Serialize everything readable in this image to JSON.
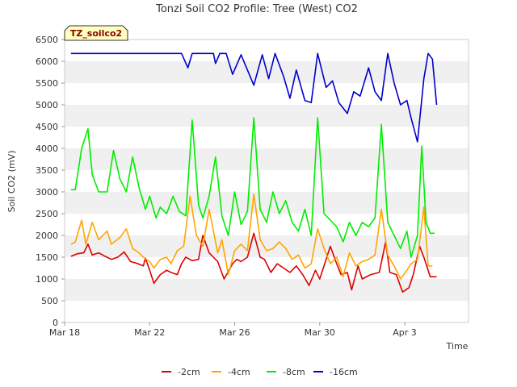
{
  "chart_data": {
    "type": "line",
    "title": "Tonzi Soil CO2 Profile: Tree (West) CO2",
    "xlabel": "Time",
    "ylabel": "Soil CO2 (mV)",
    "badge": "TZ_soilco2",
    "ylim": [
      0,
      6500
    ],
    "yticks": [
      0,
      500,
      1000,
      1500,
      2000,
      2500,
      3000,
      3500,
      4000,
      4500,
      5000,
      5500,
      6000,
      6500
    ],
    "xlim": [
      0,
      19
    ],
    "xticks": [
      {
        "label": "Mar 18",
        "value": 0
      },
      {
        "label": "Mar 22",
        "value": 4
      },
      {
        "label": "Mar 26",
        "value": 8
      },
      {
        "label": "Mar 30",
        "value": 12
      },
      {
        "label": "Apr 3",
        "value": 16
      }
    ],
    "series": [
      {
        "name": "-2cm",
        "color": "#dd0000",
        "x": [
          0.3,
          0.6,
          0.9,
          1.1,
          1.3,
          1.6,
          1.9,
          2.2,
          2.5,
          2.8,
          3.1,
          3.4,
          3.7,
          3.8,
          4.0,
          4.2,
          4.5,
          4.8,
          5.0,
          5.3,
          5.5,
          5.7,
          6.0,
          6.3,
          6.5,
          6.8,
          7.0,
          7.2,
          7.5,
          7.9,
          8.1,
          8.3,
          8.6,
          8.9,
          9.2,
          9.4,
          9.7,
          10.0,
          10.3,
          10.6,
          10.9,
          11.2,
          11.5,
          11.8,
          12.0,
          12.2,
          12.5,
          12.8,
          13.0,
          13.3,
          13.5,
          13.8,
          14.0,
          14.4,
          14.8,
          15.1,
          15.3,
          15.6,
          15.9,
          16.2,
          16.4,
          16.7,
          16.9,
          17.2,
          17.5
        ],
        "values": [
          1520,
          1580,
          1600,
          1800,
          1550,
          1600,
          1520,
          1450,
          1500,
          1620,
          1400,
          1360,
          1300,
          1480,
          1200,
          900,
          1100,
          1200,
          1150,
          1100,
          1350,
          1500,
          1420,
          1450,
          2000,
          1600,
          1500,
          1400,
          1000,
          1350,
          1450,
          1400,
          1500,
          2050,
          1500,
          1450,
          1150,
          1350,
          1250,
          1150,
          1300,
          1100,
          850,
          1200,
          1000,
          1300,
          1750,
          1350,
          1100,
          1150,
          750,
          1300,
          1000,
          1100,
          1150,
          1850,
          1150,
          1100,
          700,
          800,
          1100,
          1750,
          1500,
          1050,
          1050
        ]
      },
      {
        "name": "-4cm",
        "color": "#ffa500",
        "x": [
          0.3,
          0.5,
          0.8,
          1.0,
          1.3,
          1.6,
          2.0,
          2.2,
          2.6,
          2.9,
          3.2,
          3.5,
          3.7,
          4.0,
          4.2,
          4.5,
          4.8,
          5.0,
          5.3,
          5.6,
          5.9,
          6.2,
          6.5,
          6.8,
          7.2,
          7.4,
          7.7,
          8.0,
          8.3,
          8.6,
          8.9,
          9.2,
          9.5,
          9.8,
          10.1,
          10.4,
          10.7,
          11.0,
          11.3,
          11.6,
          11.9,
          12.2,
          12.5,
          12.8,
          13.1,
          13.4,
          13.7,
          14.0,
          14.3,
          14.6,
          14.9,
          15.2,
          15.5,
          15.8,
          16.1,
          16.3,
          16.6,
          16.9,
          17.1,
          17.3
        ],
        "values": [
          1800,
          1850,
          2350,
          1800,
          2300,
          1900,
          2100,
          1800,
          1950,
          2150,
          1700,
          1600,
          1500,
          1400,
          1250,
          1450,
          1500,
          1350,
          1650,
          1750,
          2900,
          2000,
          1750,
          2600,
          1600,
          1900,
          1100,
          1650,
          1800,
          1650,
          2950,
          1900,
          1650,
          1700,
          1850,
          1700,
          1450,
          1550,
          1250,
          1350,
          2150,
          1700,
          1350,
          1500,
          1050,
          1600,
          1300,
          1400,
          1450,
          1550,
          2600,
          1550,
          1300,
          1000,
          1200,
          1350,
          1450,
          2650,
          1300,
          1300
        ]
      },
      {
        "name": "-8cm",
        "color": "#00ee00",
        "x": [
          0.3,
          0.5,
          0.8,
          1.1,
          1.3,
          1.6,
          2.0,
          2.3,
          2.6,
          2.9,
          3.2,
          3.5,
          3.8,
          4.0,
          4.3,
          4.5,
          4.8,
          5.1,
          5.4,
          5.7,
          6.0,
          6.3,
          6.5,
          6.8,
          7.1,
          7.4,
          7.7,
          8.0,
          8.3,
          8.6,
          8.9,
          9.2,
          9.5,
          9.8,
          10.1,
          10.4,
          10.7,
          11.0,
          11.3,
          11.6,
          11.9,
          12.2,
          12.5,
          12.8,
          13.1,
          13.4,
          13.7,
          14.0,
          14.3,
          14.6,
          14.9,
          15.2,
          15.5,
          15.8,
          16.1,
          16.3,
          16.6,
          16.8,
          17.0,
          17.2,
          17.4
        ],
        "values": [
          3050,
          3050,
          4000,
          4450,
          3400,
          3000,
          3000,
          3950,
          3300,
          3000,
          3800,
          3100,
          2600,
          2900,
          2400,
          2650,
          2500,
          2900,
          2550,
          2450,
          4650,
          2700,
          2400,
          2900,
          3800,
          2450,
          2000,
          3000,
          2250,
          2550,
          4700,
          2600,
          2300,
          3000,
          2500,
          2800,
          2300,
          2100,
          2600,
          2000,
          4700,
          2500,
          2350,
          2200,
          1850,
          2300,
          2000,
          2300,
          2200,
          2400,
          4550,
          2300,
          2000,
          1700,
          2100,
          1500,
          2000,
          4050,
          2300,
          2050,
          2050
        ]
      },
      {
        "name": "-16cm",
        "color": "#0000cc",
        "x": [
          0.3,
          1.0,
          2.0,
          3.0,
          4.0,
          5.0,
          5.5,
          5.8,
          6.0,
          6.4,
          7.0,
          7.1,
          7.3,
          7.6,
          7.9,
          8.3,
          8.6,
          8.9,
          9.3,
          9.6,
          9.9,
          10.3,
          10.6,
          10.9,
          11.3,
          11.6,
          11.9,
          12.3,
          12.6,
          12.9,
          13.3,
          13.6,
          13.9,
          14.3,
          14.6,
          14.9,
          15.2,
          15.5,
          15.8,
          16.1,
          16.3,
          16.6,
          16.9,
          17.1,
          17.3,
          17.5
        ],
        "values": [
          6180,
          6180,
          6180,
          6180,
          6180,
          6180,
          6180,
          5850,
          6180,
          6180,
          6180,
          5950,
          6180,
          6180,
          5700,
          6150,
          5800,
          5450,
          6150,
          5600,
          6180,
          5650,
          5150,
          5800,
          5100,
          5050,
          6180,
          5400,
          5550,
          5050,
          4800,
          5300,
          5200,
          5850,
          5300,
          5100,
          6180,
          5500,
          5000,
          5100,
          4700,
          4150,
          5600,
          6180,
          6050,
          5000
        ]
      }
    ]
  }
}
